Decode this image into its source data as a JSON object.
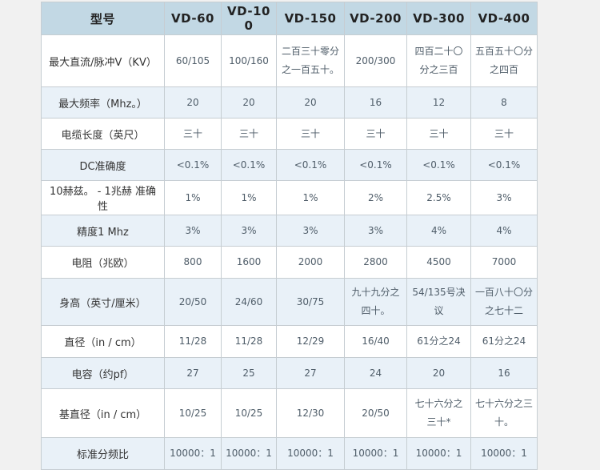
{
  "table": {
    "columns": [
      "型号",
      "VD-60",
      "VD-100",
      "VD-150",
      "VD-200",
      "VD-300",
      "VD-400"
    ],
    "rows": [
      {
        "label": "最大直流/脉冲V（KV）",
        "values": [
          "60/105",
          "100/160",
          "二百三十零分之一百五十。",
          "200/300",
          "四百二十〇分之三百",
          "五百五十〇分之四百"
        ]
      },
      {
        "label": "最大频率（Mhz。）",
        "values": [
          "20",
          "20",
          "20",
          "16",
          "12",
          "8"
        ]
      },
      {
        "label": "电缆长度（英尺）",
        "values": [
          "三十",
          "三十",
          "三十",
          "三十",
          "三十",
          "三十"
        ]
      },
      {
        "label": "DC准确度",
        "values": [
          "<0.1%",
          "<0.1%",
          "<0.1%",
          "<0.1%",
          "<0.1%",
          "<0.1%"
        ]
      },
      {
        "label": "10赫兹。 - 1兆赫 准确性",
        "values": [
          "1%",
          "1%",
          "1%",
          "2%",
          "2.5%",
          "3%"
        ]
      },
      {
        "label": "精度1 Mhz",
        "values": [
          "3%",
          "3%",
          "3%",
          "3%",
          "4%",
          "4%"
        ]
      },
      {
        "label": "电阻（兆欧）",
        "values": [
          "800",
          "1600",
          "2000",
          "2800",
          "4500",
          "7000"
        ]
      },
      {
        "label": "身高（英寸/厘米）",
        "values": [
          "20/50",
          "24/60",
          "30/75",
          "九十九分之四十。",
          "54/135号决议",
          "一百八十〇分之七十二"
        ]
      },
      {
        "label": "直径（in / cm）",
        "values": [
          "11/28",
          "11/28",
          "12/29",
          "16/40",
          "61分之24",
          "61分之24"
        ]
      },
      {
        "label": "电容（约pf）",
        "values": [
          "27",
          "25",
          "27",
          "24",
          "20",
          "16"
        ]
      },
      {
        "label": "基直径（in / cm）",
        "values": [
          "10/25",
          "10/25",
          "12/30",
          "20/50",
          "七十六分之三十*",
          "七十六分之三十。"
        ]
      },
      {
        "label": "标准分频比",
        "values": [
          "10000：1",
          "10000：1",
          "10000：1",
          "10000：1",
          "10000：1",
          "10000：1"
        ]
      }
    ]
  },
  "colors": {
    "page_background": "#f1f1f1",
    "header_background": "#c2d8e4",
    "alt_row_background": "#e9f1f8",
    "row_background": "#ffffff",
    "border": "#c6cdd2",
    "header_text": "#222222",
    "label_text": "#333333",
    "value_text": "#4f5d69"
  }
}
